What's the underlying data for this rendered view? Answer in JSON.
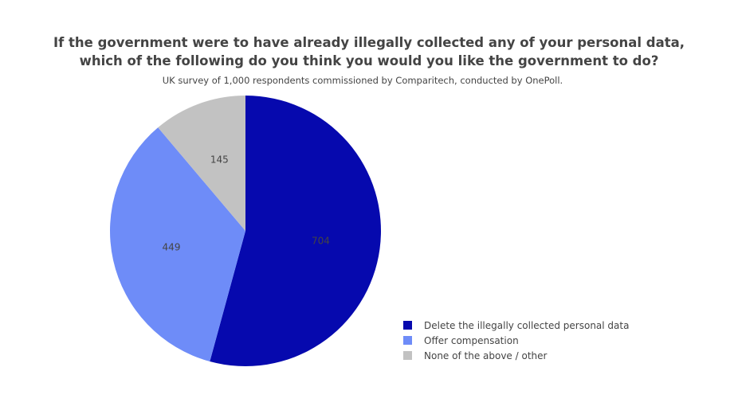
{
  "chart_data": {
    "type": "pie",
    "title_line1": "If the government were to have already illegally collected any of your personal data,",
    "title_line2": "which of the following do you think you would you like the government to do?",
    "subtitle": "UK survey of 1,000 respondents commissioned by Comparitech, conducted by OnePoll.",
    "categories": [
      "Delete the illegally collected personal data",
      "Offer compensation",
      "None of the above / other"
    ],
    "values": [
      704,
      449,
      145
    ],
    "colors": [
      "#0609ae",
      "#6e8cf8",
      "#c2c2c2"
    ],
    "legend_position": "bottom-right"
  }
}
